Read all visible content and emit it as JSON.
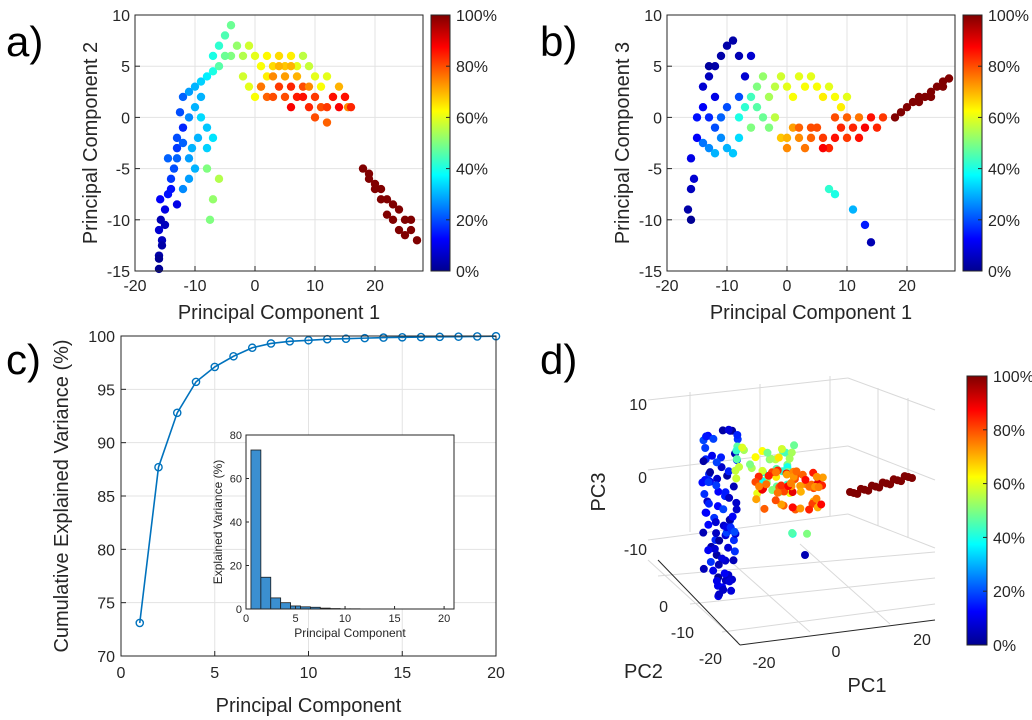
{
  "panels": {
    "a": "a)",
    "b": "b)",
    "c": "c)",
    "d": "d)"
  },
  "chart_data": [
    {
      "type": "scatter",
      "id": "a",
      "xlabel": "Principal Component 1",
      "ylabel": "Principal Component 2",
      "xlim": [
        -20,
        28
      ],
      "ylim": [
        -15,
        10
      ],
      "xticks": [
        -20,
        -10,
        0,
        10,
        20
      ],
      "yticks": [
        -15,
        -10,
        -5,
        0,
        5,
        10
      ],
      "grid": true,
      "colorbar": {
        "colormap": "jet",
        "ticks": [
          "0%",
          "20%",
          "40%",
          "60%",
          "80%",
          "100%"
        ]
      },
      "points": [
        [
          -16,
          -14.8,
          0.02
        ],
        [
          -16,
          -13.5,
          0.04
        ],
        [
          -15.5,
          -12,
          0.06
        ],
        [
          -16,
          -11,
          0.08
        ],
        [
          -15.7,
          -10,
          0.05
        ],
        [
          -15,
          -9,
          0.1
        ],
        [
          -15.8,
          -8,
          0.12
        ],
        [
          -14.5,
          -7.5,
          0.14
        ],
        [
          -14,
          -6,
          0.18
        ],
        [
          -13.5,
          -5,
          0.2
        ],
        [
          -14.5,
          -4,
          0.22
        ],
        [
          -13,
          -3,
          0.18
        ],
        [
          -13,
          -2,
          0.2
        ],
        [
          -12,
          -1,
          0.16
        ],
        [
          -12.5,
          0.5,
          0.2
        ],
        [
          -12,
          2,
          0.22
        ],
        [
          -11,
          2.5,
          0.28
        ],
        [
          -10,
          3,
          0.3
        ],
        [
          -9,
          3.5,
          0.33
        ],
        [
          -8,
          4,
          0.36
        ],
        [
          -7,
          4.5,
          0.4
        ],
        [
          -9,
          2,
          0.3
        ],
        [
          -10,
          1,
          0.3
        ],
        [
          -11,
          0,
          0.26
        ],
        [
          -12,
          -2.5,
          0.22
        ],
        [
          -13,
          -4,
          0.22
        ],
        [
          -14,
          -7,
          0.14
        ],
        [
          -13,
          -8.5,
          0.1
        ],
        [
          -15,
          -10.5,
          0.06
        ],
        [
          -15.5,
          -12.5,
          0.04
        ],
        [
          -16,
          -13.8,
          0.02
        ],
        [
          -11,
          -4,
          0.28
        ],
        [
          -10.5,
          -3,
          0.3
        ],
        [
          -9.5,
          -2,
          0.3
        ],
        [
          -8,
          -1,
          0.32
        ],
        [
          -9,
          0,
          0.34
        ],
        [
          -10,
          -5,
          0.3
        ],
        [
          -11,
          -6,
          0.28
        ],
        [
          -12,
          -7,
          0.26
        ],
        [
          -8,
          -3,
          0.33
        ],
        [
          -7,
          -2,
          0.35
        ],
        [
          -6,
          7,
          0.42
        ],
        [
          -5,
          8,
          0.45
        ],
        [
          -4,
          9,
          0.48
        ],
        [
          -7,
          6,
          0.4
        ],
        [
          -6,
          5,
          0.46
        ],
        [
          -4,
          6,
          0.5
        ],
        [
          -3,
          7,
          0.52
        ],
        [
          -5,
          6,
          0.48
        ],
        [
          -2,
          6,
          0.55
        ],
        [
          -1,
          7,
          0.58
        ],
        [
          0,
          6,
          0.6
        ],
        [
          1,
          5,
          0.62
        ],
        [
          2,
          4,
          0.64
        ],
        [
          3,
          5,
          0.66
        ],
        [
          -1,
          3,
          0.6
        ],
        [
          0,
          2,
          0.62
        ],
        [
          1,
          3,
          0.64
        ],
        [
          2,
          6,
          0.63
        ],
        [
          -2,
          4,
          0.58
        ],
        [
          -7,
          -8,
          0.52
        ],
        [
          -7.5,
          -10,
          0.5
        ],
        [
          -6,
          -6,
          0.55
        ],
        [
          -8,
          -5,
          0.5
        ],
        [
          4,
          6,
          0.66
        ],
        [
          5,
          5,
          0.68
        ],
        [
          6,
          6,
          0.64
        ],
        [
          7,
          5,
          0.6
        ],
        [
          8,
          6,
          0.56
        ],
        [
          9,
          5,
          0.57
        ],
        [
          10,
          4,
          0.6
        ],
        [
          11,
          3,
          0.62
        ],
        [
          12,
          4,
          0.6
        ],
        [
          13,
          2,
          0.58
        ],
        [
          14,
          3,
          0.7
        ],
        [
          15,
          2,
          0.72
        ],
        [
          15.5,
          1,
          0.74
        ],
        [
          1,
          3,
          0.76
        ],
        [
          2,
          2,
          0.78
        ],
        [
          3,
          2,
          0.8
        ],
        [
          4,
          3,
          0.82
        ],
        [
          5,
          2,
          0.8
        ],
        [
          6,
          3,
          0.84
        ],
        [
          7,
          2,
          0.85
        ],
        [
          8,
          2,
          0.86
        ],
        [
          9,
          1,
          0.84
        ],
        [
          10,
          2,
          0.82
        ],
        [
          11,
          1,
          0.8
        ],
        [
          12,
          1,
          0.82
        ],
        [
          13,
          2,
          0.86
        ],
        [
          14,
          1,
          0.88
        ],
        [
          15,
          2,
          0.86
        ],
        [
          16,
          1,
          0.84
        ],
        [
          6,
          1,
          0.88
        ],
        [
          8,
          3,
          0.8
        ],
        [
          10,
          0,
          0.8
        ],
        [
          12,
          -0.5,
          0.78
        ],
        [
          3,
          4,
          0.74
        ],
        [
          5,
          4,
          0.72
        ],
        [
          7,
          4,
          0.7
        ],
        [
          9,
          3,
          0.74
        ],
        [
          4,
          5,
          0.7
        ],
        [
          6,
          5,
          0.7
        ],
        [
          18,
          -5,
          1.0
        ],
        [
          19,
          -6,
          1.0
        ],
        [
          20,
          -6.5,
          1.0
        ],
        [
          21,
          -7,
          1.0
        ],
        [
          22,
          -8,
          1.0
        ],
        [
          23,
          -8.5,
          1.0
        ],
        [
          24,
          -9,
          1.0
        ],
        [
          25,
          -10,
          1.0
        ],
        [
          26,
          -11,
          1.0
        ],
        [
          27,
          -12,
          1.0
        ],
        [
          22,
          -9.5,
          1.0
        ],
        [
          24,
          -11,
          1.0
        ],
        [
          25,
          -11.5,
          1.0
        ],
        [
          23,
          -10,
          1.0
        ],
        [
          20,
          -7,
          1.0
        ],
        [
          19,
          -5.5,
          1.0
        ],
        [
          26,
          -10,
          1.0
        ],
        [
          21,
          -8,
          1.0
        ]
      ]
    },
    {
      "type": "scatter",
      "id": "b",
      "xlabel": "Principal Component 1",
      "ylabel": "Principal Component 3",
      "xlim": [
        -20,
        28
      ],
      "ylim": [
        -15,
        10
      ],
      "xticks": [
        -20,
        -10,
        0,
        10,
        20
      ],
      "yticks": [
        -15,
        -10,
        -5,
        0,
        5,
        10
      ],
      "grid": true,
      "colorbar": {
        "colormap": "jet",
        "ticks": [
          "0%",
          "20%",
          "40%",
          "60%",
          "80%",
          "100%"
        ]
      },
      "points": [
        [
          -16,
          -10,
          0.02
        ],
        [
          -16.5,
          -9,
          0.04
        ],
        [
          -16,
          -7,
          0.06
        ],
        [
          -15.5,
          -6,
          0.08
        ],
        [
          -16,
          -4,
          0.1
        ],
        [
          -15,
          -2,
          0.12
        ],
        [
          -15,
          0,
          0.14
        ],
        [
          -14,
          1,
          0.12
        ],
        [
          -14,
          3,
          0.08
        ],
        [
          -13,
          4,
          0.06
        ],
        [
          -12,
          5,
          0.04
        ],
        [
          -11,
          6,
          0.04
        ],
        [
          -10,
          7,
          0.04
        ],
        [
          -9,
          7.5,
          0.04
        ],
        [
          -8,
          6,
          0.05
        ],
        [
          -7,
          4,
          0.08
        ],
        [
          -12,
          2,
          0.1
        ],
        [
          -13,
          0,
          0.16
        ],
        [
          -12,
          -1,
          0.2
        ],
        [
          -11,
          -2,
          0.26
        ],
        [
          -14,
          -2.5,
          0.24
        ],
        [
          -13,
          -3,
          0.26
        ],
        [
          -12,
          -3.5,
          0.3
        ],
        [
          -10,
          -3,
          0.3
        ],
        [
          -9,
          -3.5,
          0.32
        ],
        [
          -8,
          -2,
          0.34
        ],
        [
          -11,
          0,
          0.22
        ],
        [
          -10,
          1,
          0.2
        ],
        [
          -8,
          2,
          0.2
        ],
        [
          -6,
          6,
          0.08
        ],
        [
          -13,
          5,
          0.03
        ],
        [
          -8,
          0,
          0.4
        ],
        [
          -7,
          1,
          0.42
        ],
        [
          -6,
          2,
          0.44
        ],
        [
          -5,
          1,
          0.46
        ],
        [
          -4,
          0,
          0.48
        ],
        [
          -3,
          -1,
          0.5
        ],
        [
          -6,
          -1,
          0.5
        ],
        [
          -5,
          3,
          0.5
        ],
        [
          -4,
          4,
          0.52
        ],
        [
          -3,
          2,
          0.54
        ],
        [
          -2,
          3,
          0.56
        ],
        [
          -1,
          4,
          0.58
        ],
        [
          0,
          3,
          0.6
        ],
        [
          1,
          2,
          0.62
        ],
        [
          2,
          4,
          0.6
        ],
        [
          3,
          3,
          0.62
        ],
        [
          4,
          4,
          0.6
        ],
        [
          5,
          3,
          0.62
        ],
        [
          6,
          2,
          0.64
        ],
        [
          7,
          3,
          0.6
        ],
        [
          8,
          2,
          0.62
        ],
        [
          9,
          1,
          0.64
        ],
        [
          10,
          2,
          0.6
        ],
        [
          -2,
          0,
          0.56
        ],
        [
          -1,
          -2,
          0.68
        ],
        [
          0,
          -2,
          0.7
        ],
        [
          1,
          -1,
          0.72
        ],
        [
          2,
          -2,
          0.74
        ],
        [
          3,
          -3,
          0.76
        ],
        [
          4,
          -2,
          0.78
        ],
        [
          5,
          -1,
          0.8
        ],
        [
          6,
          -2,
          0.82
        ],
        [
          7,
          -3,
          0.84
        ],
        [
          8,
          -2,
          0.86
        ],
        [
          9,
          -1,
          0.84
        ],
        [
          10,
          -2,
          0.82
        ],
        [
          11,
          -1,
          0.84
        ],
        [
          12,
          -2,
          0.86
        ],
        [
          13,
          -1,
          0.88
        ],
        [
          14,
          0,
          0.86
        ],
        [
          15,
          -1,
          0.84
        ],
        [
          16,
          0,
          0.82
        ],
        [
          6,
          -3,
          0.88
        ],
        [
          4,
          -1,
          0.8
        ],
        [
          2,
          -1,
          0.78
        ],
        [
          0,
          -3,
          0.74
        ],
        [
          8,
          0,
          0.8
        ],
        [
          10,
          0,
          0.78
        ],
        [
          12,
          0,
          0.76
        ],
        [
          7,
          -7,
          0.42
        ],
        [
          8,
          -7.5,
          0.4
        ],
        [
          11,
          -9,
          0.3
        ],
        [
          13,
          -10.5,
          0.15
        ],
        [
          14,
          -12.2,
          0.05
        ],
        [
          18,
          0,
          1.0
        ],
        [
          19,
          0.5,
          1.0
        ],
        [
          20,
          1,
          1.0
        ],
        [
          21,
          1.5,
          1.0
        ],
        [
          22,
          2,
          1.0
        ],
        [
          23,
          2,
          1.0
        ],
        [
          24,
          2.5,
          1.0
        ],
        [
          25,
          3,
          1.0
        ],
        [
          26,
          3.5,
          1.0
        ],
        [
          27,
          3.8,
          1.0
        ],
        [
          22,
          1.5,
          1.0
        ],
        [
          24,
          2,
          1.0
        ],
        [
          26,
          3,
          1.0
        ]
      ]
    },
    {
      "type": "line",
      "id": "c",
      "xlabel": "Principal Component",
      "ylabel": "Cumulative Explained Variance (%)",
      "xlim": [
        0,
        20
      ],
      "ylim": [
        70,
        100
      ],
      "xticks": [
        0,
        5,
        10,
        15,
        20
      ],
      "yticks": [
        70,
        75,
        80,
        85,
        90,
        95,
        100
      ],
      "grid": true,
      "x": [
        1,
        2,
        3,
        4,
        5,
        6,
        7,
        8,
        9,
        10,
        11,
        12,
        13,
        14,
        15,
        16,
        17,
        18,
        19,
        20
      ],
      "y": [
        73.1,
        87.7,
        92.8,
        95.7,
        97.1,
        98.1,
        98.9,
        99.3,
        99.5,
        99.6,
        99.7,
        99.75,
        99.8,
        99.85,
        99.88,
        99.9,
        99.92,
        99.94,
        99.96,
        99.98
      ],
      "inset": {
        "type": "bar",
        "xlabel": "Principal Component",
        "ylabel": "Explained Variance (%)",
        "xlim": [
          0,
          21
        ],
        "ylim": [
          0,
          80
        ],
        "xticks": [
          0,
          5,
          10,
          15,
          20
        ],
        "yticks": [
          0,
          20,
          40,
          60,
          80
        ],
        "x": [
          1,
          2,
          3,
          4,
          5,
          6,
          7,
          8,
          9,
          10,
          11,
          12,
          13,
          14,
          15,
          16,
          17,
          18,
          19,
          20
        ],
        "values": [
          73.1,
          14.6,
          5.1,
          2.9,
          1.4,
          1.0,
          0.8,
          0.4,
          0.2,
          0.1,
          0.1,
          0.05,
          0.05,
          0.05,
          0.03,
          0.02,
          0.02,
          0.02,
          0.02,
          0.02
        ]
      }
    },
    {
      "type": "scatter3d",
      "id": "d",
      "xlabel": "PC1",
      "ylabel": "PC2",
      "zlabel": "PC3",
      "xticks": [
        "-20",
        "0",
        "20"
      ],
      "yticks": [
        "-20",
        "-10",
        "0"
      ],
      "zticks": [
        "10",
        "0",
        "-10"
      ],
      "colorbar": {
        "colormap": "jet",
        "ticks": [
          "0%",
          "20%",
          "40%",
          "60%",
          "80%",
          "100%"
        ]
      }
    }
  ]
}
